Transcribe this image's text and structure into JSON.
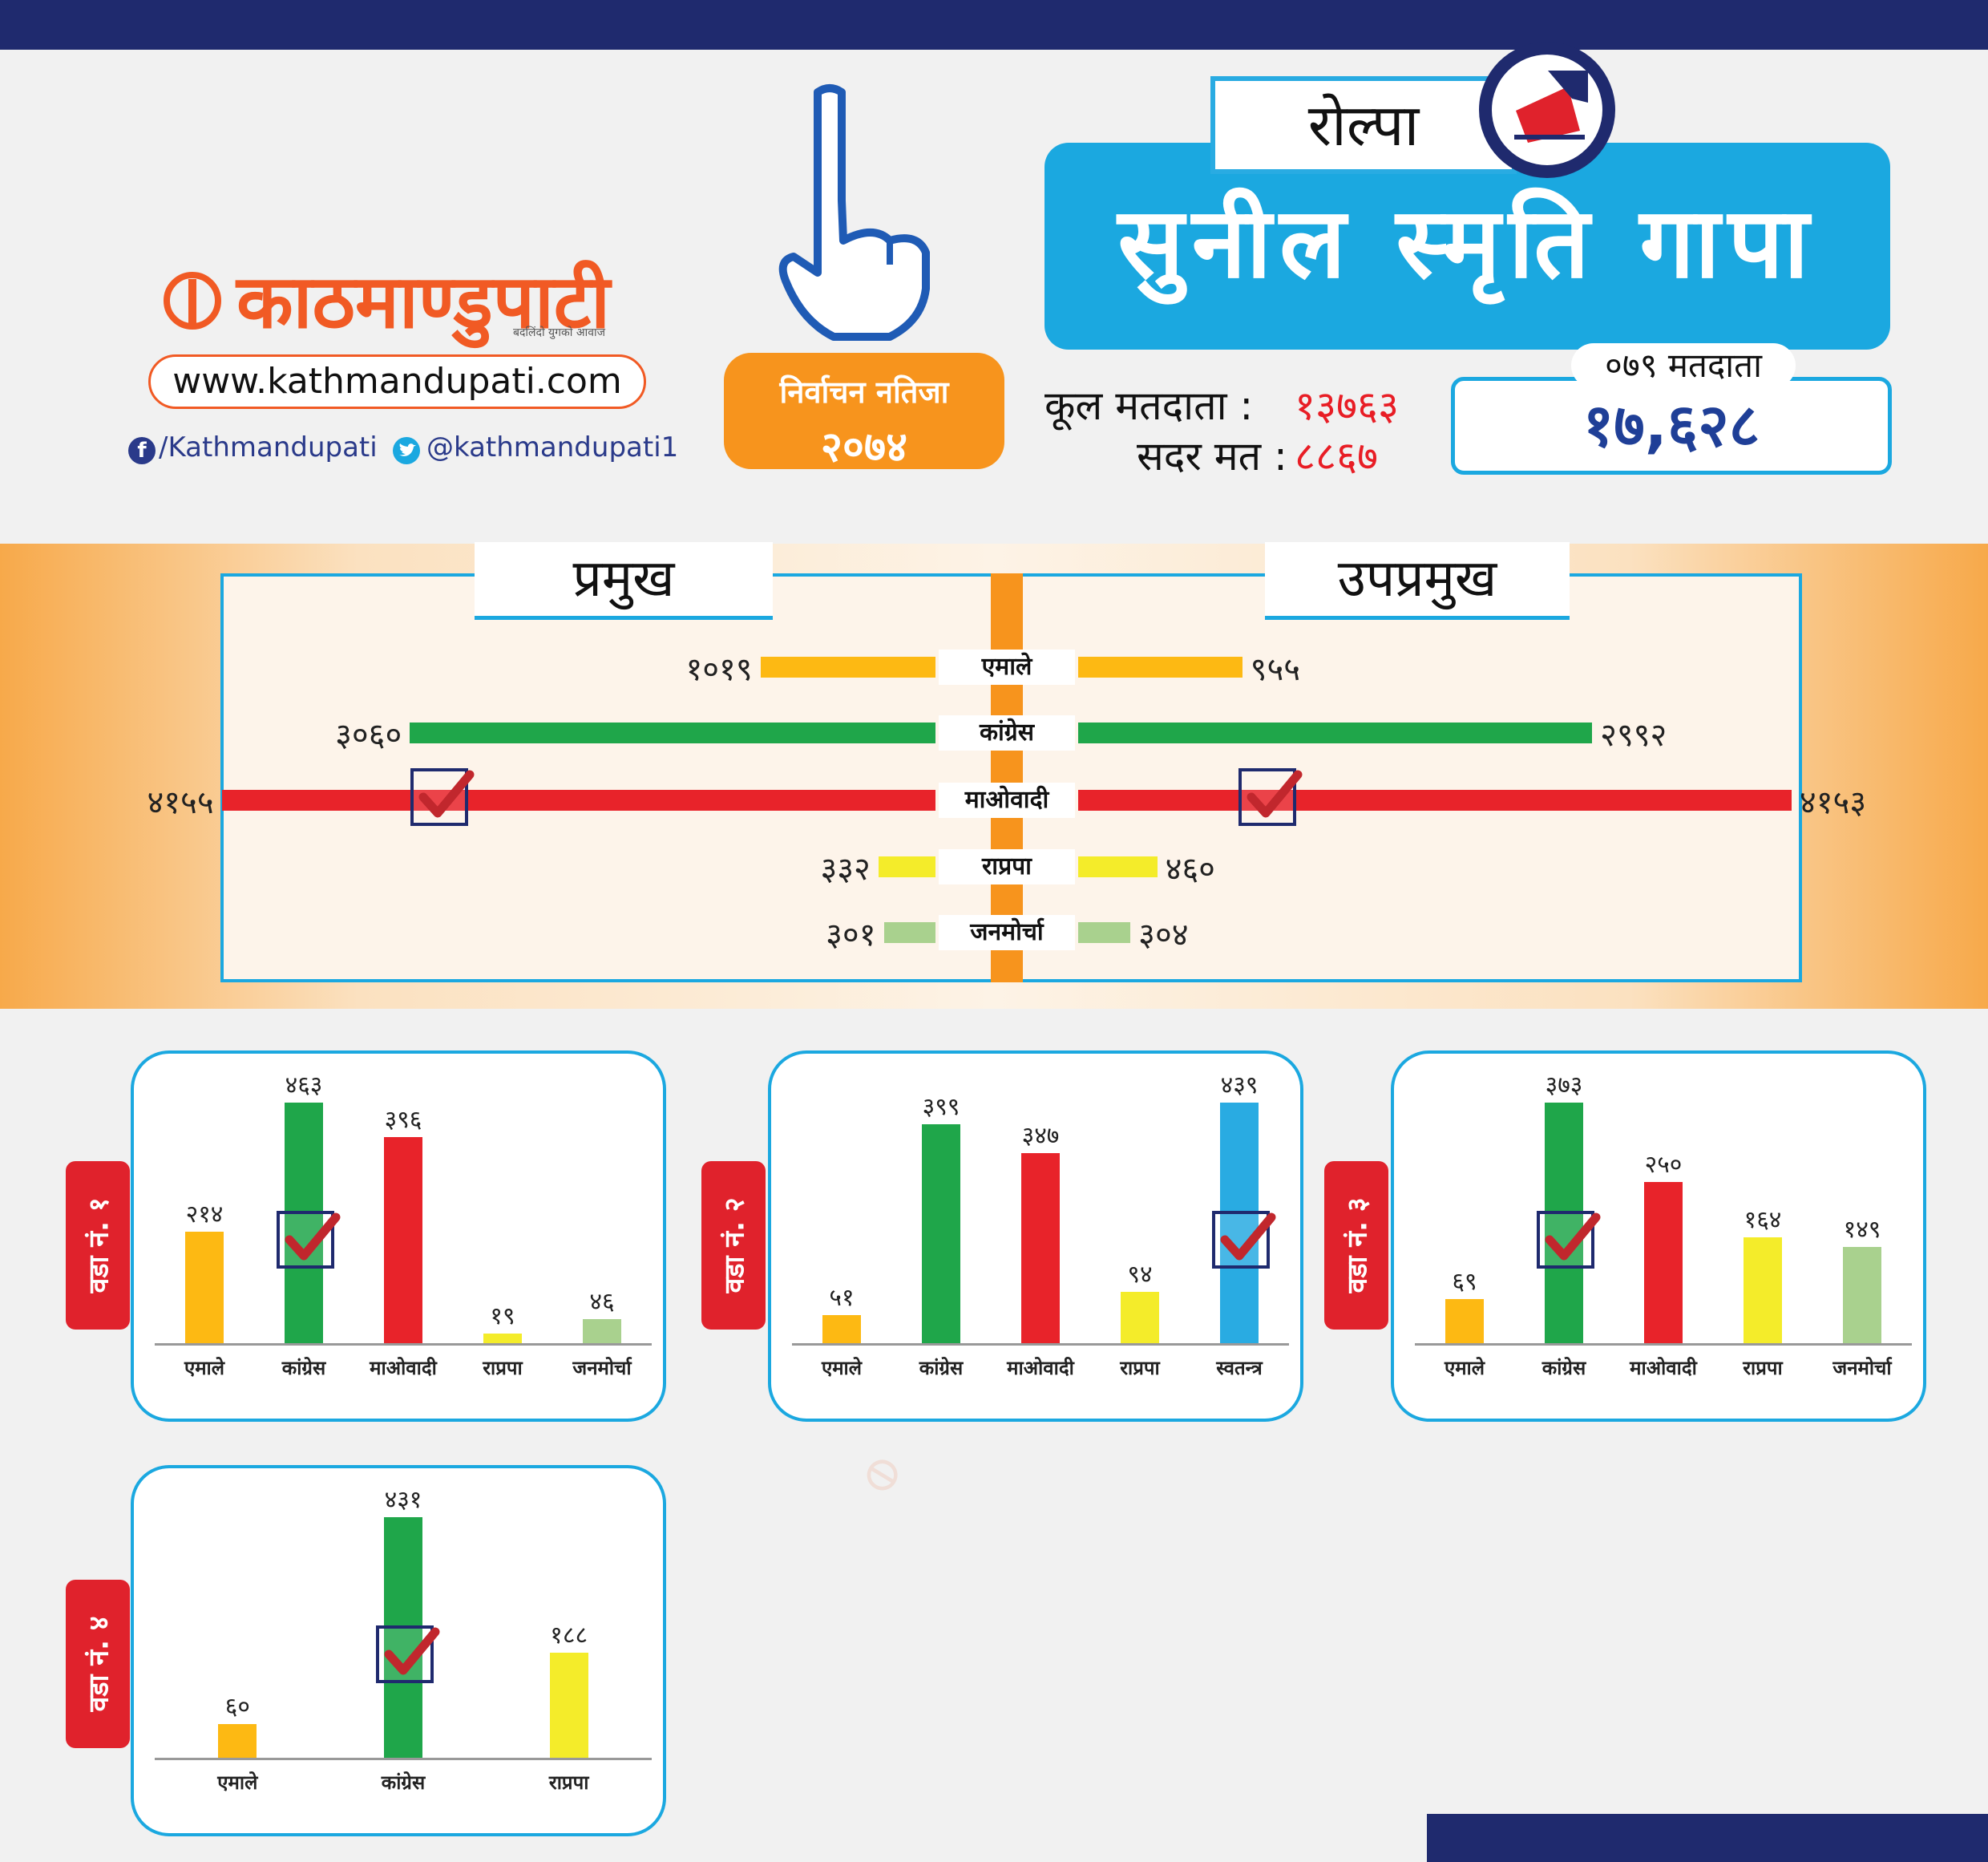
{
  "brand": {
    "logo_text": "काठमाण्डुपाटी",
    "tagline": "बदलिंदो युगको आवाज",
    "url": "www.kathmandupati.com",
    "facebook": "/Kathmandupati",
    "twitter": "@kathmandupati1"
  },
  "header": {
    "result_label": "निर्वाचन नतिजा",
    "result_year": "२०७४",
    "district": "रोल्पा",
    "municipality": "सुनील स्मृति गापा",
    "total_voters_label": "कूल मतदाता :",
    "total_voters": "१३७६३",
    "valid_votes_label": "सदर मत :",
    "valid_votes": "८८६७",
    "voters_079_label": "०७९ मतदाता",
    "voters_079": "१७,६२८"
  },
  "colors": {
    "emale": "#fdb913",
    "congress": "#1fa64a",
    "maoist": "#e8232a",
    "rpp": "#f4ec2a",
    "janamorcha": "#a9d18e",
    "independent": "#29abe2"
  },
  "chart_data": [
    {
      "type": "bar",
      "title": "प्रमुख",
      "categories": [
        "एमाले",
        "कांग्रेस",
        "माओवादी",
        "राप्रपा",
        "जनमोर्चा"
      ],
      "values": [
        1019,
        3060,
        4155,
        332,
        301
      ],
      "labels": [
        "१०१९",
        "३०६०",
        "४१५५",
        "३३२",
        "३०१"
      ],
      "winner": "माओवादी"
    },
    {
      "type": "bar",
      "title": "उपप्रमुख",
      "categories": [
        "एमाले",
        "कांग्रेस",
        "माओवादी",
        "राप्रपा",
        "जनमोर्चा"
      ],
      "values": [
        955,
        2992,
        4153,
        460,
        304
      ],
      "labels": [
        "९५५",
        "२९९२",
        "४१५३",
        "४६०",
        "३०४"
      ],
      "winner": "माओवादी"
    },
    {
      "type": "bar",
      "title": "वडा नं. १",
      "categories": [
        "एमाले",
        "कांग्रेस",
        "माओवादी",
        "राप्रपा",
        "जनमोर्चा"
      ],
      "values": [
        214,
        463,
        396,
        19,
        46
      ],
      "labels": [
        "२१४",
        "४६३",
        "३९६",
        "१९",
        "४६"
      ],
      "winner": "कांग्रेस"
    },
    {
      "type": "bar",
      "title": "वडा नं. २",
      "categories": [
        "एमाले",
        "कांग्रेस",
        "माओवादी",
        "राप्रपा",
        "स्वतन्त्र"
      ],
      "values": [
        51,
        399,
        347,
        94,
        439
      ],
      "labels": [
        "५१",
        "३९९",
        "३४७",
        "९४",
        "४३९"
      ],
      "winner": "स्वतन्त्र"
    },
    {
      "type": "bar",
      "title": "वडा नं. ३",
      "categories": [
        "एमाले",
        "कांग्रेस",
        "माओवादी",
        "राप्रपा",
        "जनमोर्चा"
      ],
      "values": [
        69,
        373,
        250,
        164,
        149
      ],
      "labels": [
        "६९",
        "३७३",
        "२५०",
        "१६४",
        "१४९"
      ],
      "winner": "कांग्रेस"
    },
    {
      "type": "bar",
      "title": "वडा नं. ४",
      "categories": [
        "एमाले",
        "कांग्रेस",
        "राप्रपा"
      ],
      "values": [
        60,
        431,
        188
      ],
      "labels": [
        "६०",
        "४३१",
        "१८८"
      ],
      "winner": "कांग्रेस"
    }
  ]
}
